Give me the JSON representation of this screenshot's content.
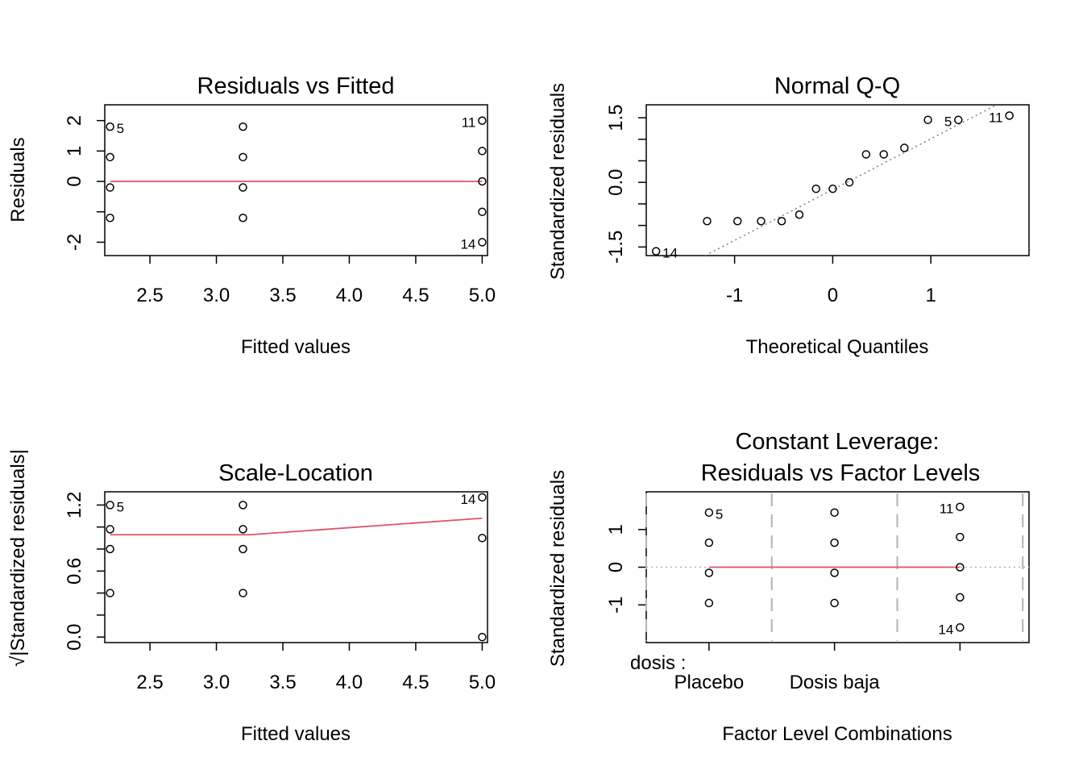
{
  "colors": {
    "smooth": "#DF536B",
    "points": "#000000",
    "reference": "#808080"
  },
  "chart_data": [
    {
      "type": "scatter",
      "title": "Residuals vs Fitted",
      "xlabel": "Fitted values",
      "ylabel": "Residuals",
      "xlim": [
        2.16,
        5.04
      ],
      "ylim": [
        -2.44,
        2.52
      ],
      "xticks": [
        2.5,
        3.0,
        3.5,
        4.0,
        4.5,
        5.0
      ],
      "xtick_labels": [
        "2.5",
        "3.0",
        "3.5",
        "4.0",
        "4.5",
        "5.0"
      ],
      "yticks": [
        -2,
        -1,
        0,
        1,
        2
      ],
      "ytick_labels": [
        "-2",
        "",
        "0",
        "1",
        "2"
      ],
      "points": [
        {
          "x": 2.2,
          "y": 1.8,
          "label": "5"
        },
        {
          "x": 2.2,
          "y": 0.8
        },
        {
          "x": 2.2,
          "y": -0.2
        },
        {
          "x": 2.2,
          "y": -1.2
        },
        {
          "x": 3.2,
          "y": 1.8
        },
        {
          "x": 3.2,
          "y": 0.8
        },
        {
          "x": 3.2,
          "y": -0.2
        },
        {
          "x": 3.2,
          "y": -1.2
        },
        {
          "x": 5.0,
          "y": 2.0,
          "label": "11"
        },
        {
          "x": 5.0,
          "y": 1.0
        },
        {
          "x": 5.0,
          "y": 0.0
        },
        {
          "x": 5.0,
          "y": -1.0
        },
        {
          "x": 5.0,
          "y": -2.0,
          "label": "14"
        }
      ],
      "smooth_line": [
        [
          2.2,
          0.0
        ],
        [
          3.2,
          0.0
        ],
        [
          5.0,
          0.0
        ]
      ]
    },
    {
      "type": "scatter",
      "title": "Normal Q-Q",
      "xlabel": "Theoretical Quantiles",
      "ylabel": "Standardized residuals",
      "xlim": [
        -1.9,
        2.0
      ],
      "ylim": [
        -1.7,
        1.8
      ],
      "xticks": [
        -1,
        0,
        1
      ],
      "xtick_labels": [
        "-1",
        "0",
        "1"
      ],
      "yticks": [
        -1.5,
        -1.0,
        -0.5,
        0.0,
        0.5,
        1.0,
        1.5
      ],
      "ytick_labels": [
        "-1.5",
        "",
        "",
        "0.0",
        "",
        "",
        "1.5"
      ],
      "points": [
        {
          "x": -1.8,
          "y": -1.6,
          "label": "14"
        },
        {
          "x": -1.28,
          "y": -0.9
        },
        {
          "x": -0.97,
          "y": -0.9
        },
        {
          "x": -0.73,
          "y": -0.9
        },
        {
          "x": -0.52,
          "y": -0.9
        },
        {
          "x": -0.34,
          "y": -0.75
        },
        {
          "x": -0.17,
          "y": -0.15
        },
        {
          "x": 0.0,
          "y": -0.15
        },
        {
          "x": 0.17,
          "y": 0.0
        },
        {
          "x": 0.34,
          "y": 0.65
        },
        {
          "x": 0.52,
          "y": 0.65
        },
        {
          "x": 0.73,
          "y": 0.8
        },
        {
          "x": 0.97,
          "y": 1.45
        },
        {
          "x": 1.28,
          "y": 1.45,
          "label": "5"
        },
        {
          "x": 1.8,
          "y": 1.55,
          "label": "11"
        }
      ],
      "reference_line": [
        [
          -1.3,
          -1.7
        ],
        [
          1.67,
          1.8
        ]
      ]
    },
    {
      "type": "scatter",
      "title": "Scale-Location",
      "xlabel": "Fitted values",
      "ylabel": "√|Standardized residuals|",
      "xlim": [
        2.16,
        5.04
      ],
      "ylim": [
        -0.05,
        1.32
      ],
      "xticks": [
        2.5,
        3.0,
        3.5,
        4.0,
        4.5,
        5.0
      ],
      "xtick_labels": [
        "2.5",
        "3.0",
        "3.5",
        "4.0",
        "4.5",
        "5.0"
      ],
      "yticks": [
        0.0,
        0.2,
        0.4,
        0.6,
        0.8,
        1.0,
        1.2
      ],
      "ytick_labels": [
        "0.0",
        "",
        "",
        "0.6",
        "",
        "",
        "1.2"
      ],
      "points": [
        {
          "x": 2.2,
          "y": 1.2,
          "label": "5"
        },
        {
          "x": 2.2,
          "y": 0.98
        },
        {
          "x": 2.2,
          "y": 0.8
        },
        {
          "x": 2.2,
          "y": 0.4
        },
        {
          "x": 3.2,
          "y": 1.2
        },
        {
          "x": 3.2,
          "y": 0.98
        },
        {
          "x": 3.2,
          "y": 0.8
        },
        {
          "x": 3.2,
          "y": 0.4
        },
        {
          "x": 5.0,
          "y": 1.27,
          "label": "14"
        },
        {
          "x": 5.0,
          "y": 0.9
        },
        {
          "x": 5.0,
          "y": 0.0
        }
      ],
      "smooth_line": [
        [
          2.2,
          0.93
        ],
        [
          3.25,
          0.93
        ],
        [
          5.0,
          1.08
        ]
      ]
    },
    {
      "type": "scatter",
      "title": "Constant Leverage:",
      "subtitle": "Residuals vs Factor Levels",
      "xlabel": "Factor Level Combinations",
      "ylabel": "Standardized residuals",
      "factor_name": "dosis :",
      "xlim": [
        0.5,
        3.55
      ],
      "ylim": [
        -2.0,
        2.0
      ],
      "xticks": [
        1,
        2,
        3
      ],
      "xtick_labels": [
        "Placebo",
        "Dosis baja",
        ""
      ],
      "group_dividers": [
        0.5,
        1.5,
        2.5,
        3.5
      ],
      "yticks": [
        -1,
        0,
        1
      ],
      "ytick_labels": [
        "-1",
        "0",
        "1"
      ],
      "points": [
        {
          "x": 1,
          "y": 1.45,
          "label": "5"
        },
        {
          "x": 1,
          "y": 0.65
        },
        {
          "x": 1,
          "y": -0.15
        },
        {
          "x": 1,
          "y": -0.95
        },
        {
          "x": 2,
          "y": 1.45
        },
        {
          "x": 2,
          "y": 0.65
        },
        {
          "x": 2,
          "y": -0.15
        },
        {
          "x": 2,
          "y": -0.95
        },
        {
          "x": 3,
          "y": 1.6,
          "label": "11"
        },
        {
          "x": 3,
          "y": 0.8
        },
        {
          "x": 3,
          "y": 0.0
        },
        {
          "x": 3,
          "y": -0.8
        },
        {
          "x": 3,
          "y": -1.6,
          "label": "14"
        }
      ],
      "smooth_line": [
        [
          1,
          0.0
        ],
        [
          3,
          0.0
        ]
      ],
      "reference_hline": 0
    }
  ]
}
